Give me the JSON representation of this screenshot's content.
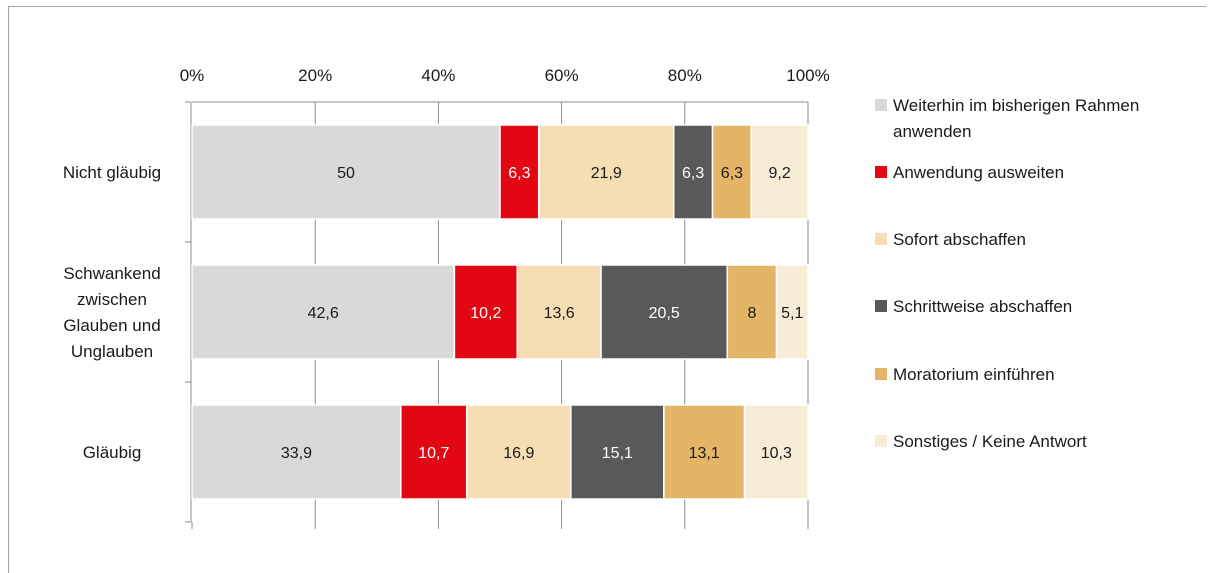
{
  "chart_data": {
    "type": "bar",
    "orientation": "horizontal",
    "stacked": "percent",
    "x_ticks": [
      "0%",
      "20%",
      "40%",
      "60%",
      "80%",
      "100%"
    ],
    "xlim": [
      0,
      100
    ],
    "grid": true,
    "legend_position": "right",
    "categories": [
      [
        "Nicht gläubig"
      ],
      [
        "Schwankend",
        "zwischen",
        "Glauben und",
        "Unglauben"
      ],
      [
        "Gläubig"
      ]
    ],
    "series": [
      {
        "name": [
          "Weiterhin im bisherigen Rahmen",
          "anwenden"
        ],
        "color": "#d9d9d9",
        "label_color": "#1a1a1a",
        "values": [
          50,
          42.6,
          33.9
        ],
        "labels": [
          "50",
          "42,6",
          "33,9"
        ]
      },
      {
        "name": [
          "Anwendung ausweiten"
        ],
        "color": "#e30613",
        "label_color": "#ffffff",
        "values": [
          6.3,
          10.2,
          10.7
        ],
        "labels": [
          "6,3",
          "10,2",
          "10,7"
        ]
      },
      {
        "name": [
          "Sofort abschaffen"
        ],
        "color": "#f5deb3",
        "label_color": "#1a1a1a",
        "values": [
          21.9,
          13.6,
          16.9
        ],
        "labels": [
          "21,9",
          "13,6",
          "16,9"
        ]
      },
      {
        "name": [
          "Schrittweise abschaffen"
        ],
        "color": "#595959",
        "label_color": "#ffffff",
        "values": [
          6.3,
          20.5,
          15.1
        ],
        "labels": [
          "6,3",
          "20,5",
          "15,1"
        ]
      },
      {
        "name": [
          "Moratorium einführen"
        ],
        "color": "#e5b567",
        "label_color": "#1a1a1a",
        "values": [
          6.3,
          8,
          13.1
        ],
        "labels": [
          "6,3",
          "8",
          "13,1"
        ]
      },
      {
        "name": [
          "Sonstiges / Keine Antwort"
        ],
        "color": "#f7ecd6",
        "label_color": "#1a1a1a",
        "values": [
          9.2,
          5.1,
          10.3
        ],
        "labels": [
          "9,2",
          "5,1",
          "10,3"
        ]
      }
    ]
  }
}
